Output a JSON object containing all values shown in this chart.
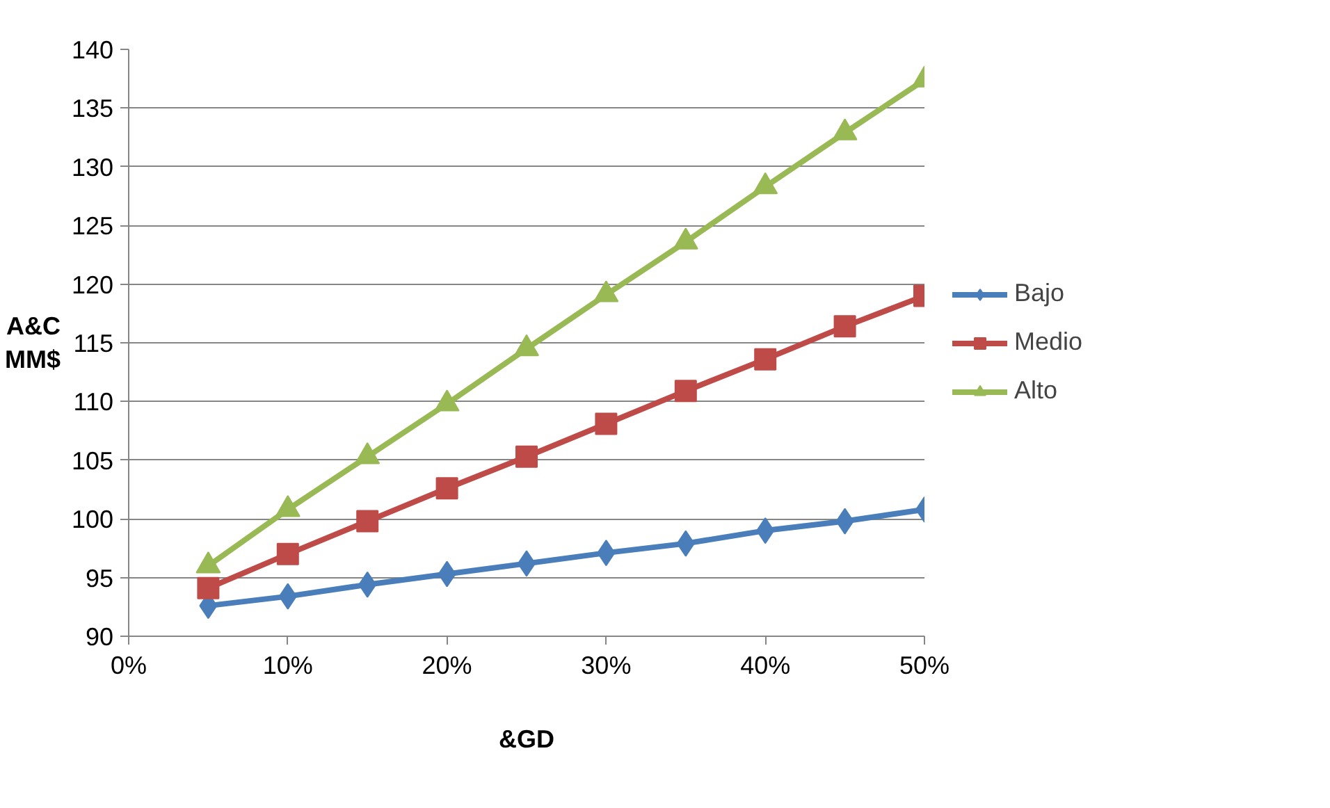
{
  "chart_data": {
    "type": "line",
    "ylabel": "A&C\nMM$",
    "xlabel": "&GD",
    "x": [
      5,
      10,
      15,
      20,
      25,
      30,
      35,
      40,
      45,
      50
    ],
    "series": [
      {
        "name": "Bajo",
        "color": "#4a7ebb",
        "marker": "diamond",
        "values": [
          92.6,
          93.4,
          94.4,
          95.3,
          96.2,
          97.1,
          97.9,
          99.0,
          99.8,
          100.8
        ]
      },
      {
        "name": "Medio",
        "color": "#be4b48",
        "marker": "square",
        "values": [
          94.1,
          97.0,
          99.8,
          102.6,
          105.3,
          108.1,
          110.9,
          113.6,
          116.4,
          119.0
        ]
      },
      {
        "name": "Alto",
        "color": "#98b954",
        "marker": "triangle",
        "values": [
          96.0,
          100.8,
          105.3,
          109.8,
          114.5,
          119.1,
          123.6,
          128.3,
          132.9,
          137.4
        ]
      }
    ],
    "xlim": [
      0,
      50
    ],
    "xticks": [
      {
        "value": 0,
        "label": "0%"
      },
      {
        "value": 10,
        "label": "10%"
      },
      {
        "value": 20,
        "label": "20%"
      },
      {
        "value": 30,
        "label": "30%"
      },
      {
        "value": 40,
        "label": "40%"
      },
      {
        "value": 50,
        "label": "50%"
      }
    ],
    "ylim": [
      90,
      140
    ],
    "yticks": [
      90,
      95,
      100,
      105,
      110,
      115,
      120,
      125,
      130,
      135,
      140
    ],
    "grid": "y",
    "legend": "right",
    "line_style": "solid"
  }
}
